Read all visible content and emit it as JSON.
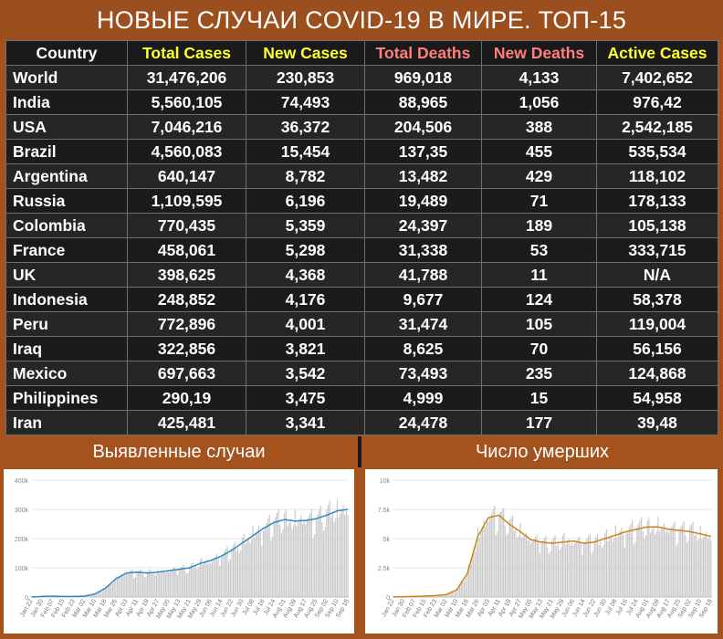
{
  "title": "НОВЫЕ СЛУЧАИ COVID-19 В МИРЕ. ТОП-15",
  "colors": {
    "banner": "#9c4f1e",
    "yellow_header": "#ffff33",
    "pink_header": "#ff7f7f",
    "chart_bar": "#c8c8c8",
    "line_cases": "#2e8bc0",
    "line_deaths": "#c8861a"
  },
  "table": {
    "headers": [
      "Country",
      "Total Cases",
      "New Cases",
      "Total Deaths",
      "New Deaths",
      "Active Cases"
    ],
    "rows": [
      [
        "World",
        "31,476,206",
        "230,853",
        "969,018",
        "4,133",
        "7,402,652"
      ],
      [
        "India",
        "5,560,105",
        "74,493",
        "88,965",
        "1,056",
        "976,42"
      ],
      [
        "USA",
        "7,046,216",
        "36,372",
        "204,506",
        "388",
        "2,542,185"
      ],
      [
        "Brazil",
        "4,560,083",
        "15,454",
        "137,35",
        "455",
        "535,534"
      ],
      [
        "Argentina",
        "640,147",
        "8,782",
        "13,482",
        "429",
        "118,102"
      ],
      [
        "Russia",
        "1,109,595",
        "6,196",
        "19,489",
        "71",
        "178,133"
      ],
      [
        "Colombia",
        "770,435",
        "5,359",
        "24,397",
        "189",
        "105,138"
      ],
      [
        "France",
        "458,061",
        "5,298",
        "31,338",
        "53",
        "333,715"
      ],
      [
        "UK",
        "398,625",
        "4,368",
        "41,788",
        "11",
        "N/A"
      ],
      [
        "Indonesia",
        "248,852",
        "4,176",
        "9,677",
        "124",
        "58,378"
      ],
      [
        "Peru",
        "772,896",
        "4,001",
        "31,474",
        "105",
        "119,004"
      ],
      [
        "Iraq",
        "322,856",
        "3,821",
        "8,625",
        "70",
        "56,156"
      ],
      [
        "Mexico",
        "697,663",
        "3,542",
        "73,493",
        "235",
        "124,868"
      ],
      [
        "Philippines",
        "290,19",
        "3,475",
        "4,999",
        "15",
        "54,958"
      ],
      [
        "Iran",
        "425,481",
        "3,341",
        "24,478",
        "177",
        "39,48"
      ]
    ]
  },
  "subtitles": {
    "cases": "Выявленные случаи",
    "deaths": "Число умерших"
  },
  "chart_data": [
    {
      "type": "bar",
      "title": "Выявленные случаи",
      "ylim": [
        0,
        400000
      ],
      "yticks": [
        "0",
        "100k",
        "200k",
        "300k",
        "400k"
      ],
      "xticks": [
        "Jan 22",
        "Jan 30",
        "Feb 07",
        "Feb 15",
        "Feb 23",
        "Mar 02",
        "Mar 10",
        "Mar 18",
        "Mar 26",
        "Apr 03",
        "Apr 11",
        "Apr 19",
        "Apr 27",
        "May 05",
        "May 13",
        "May 21",
        "May 29",
        "Jun 06",
        "Jun 14",
        "Jun 22",
        "Jun 30",
        "Jul 08",
        "Jul 16",
        "Jul 24",
        "Aug 01",
        "Aug 09",
        "Aug 17",
        "Aug 25",
        "Sep 02",
        "Sep 10",
        "Sep 18"
      ],
      "weekly_values": [
        0,
        2000,
        3000,
        2000,
        2000,
        3000,
        10000,
        30000,
        62000,
        82000,
        85000,
        82000,
        85000,
        90000,
        95000,
        100000,
        115000,
        125000,
        140000,
        160000,
        185000,
        210000,
        235000,
        255000,
        265000,
        260000,
        262000,
        268000,
        280000,
        295000,
        300000
      ],
      "grid": true
    },
    {
      "type": "bar",
      "title": "Число умерших",
      "ylim": [
        0,
        10000
      ],
      "yticks": [
        "0",
        "2.5k",
        "5k",
        "7.5k",
        "10k"
      ],
      "xticks": [
        "Jan 22",
        "Jan 30",
        "Feb 07",
        "Feb 15",
        "Feb 23",
        "Mar 02",
        "Mar 10",
        "Mar 18",
        "Mar 26",
        "Apr 03",
        "Apr 11",
        "Apr 19",
        "Apr 27",
        "May 05",
        "May 13",
        "May 21",
        "May 29",
        "Jun 06",
        "Jun 14",
        "Jun 22",
        "Jun 30",
        "Jul 08",
        "Jul 16",
        "Jul 24",
        "Aug 01",
        "Aug 09",
        "Aug 17",
        "Aug 25",
        "Sep 02",
        "Sep 10",
        "Sep 18"
      ],
      "weekly_values": [
        0,
        30,
        50,
        80,
        120,
        200,
        600,
        2000,
        5200,
        6800,
        7000,
        6200,
        5600,
        4900,
        4700,
        4600,
        4700,
        4800,
        4600,
        4700,
        5000,
        5300,
        5600,
        5800,
        6000,
        6000,
        5800,
        5700,
        5600,
        5400,
        5200
      ],
      "grid": true
    }
  ]
}
